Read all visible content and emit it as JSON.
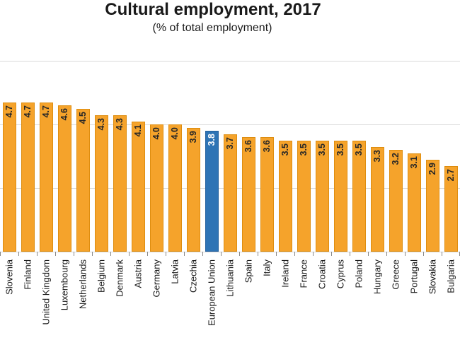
{
  "title": "Cultural employment, 2017",
  "subtitle": "(% of total employment)",
  "chart_data": {
    "type": "bar",
    "title": "Cultural employment, 2017",
    "subtitle": "(% of total employment)",
    "categories": [
      "Slovenia",
      "Finland",
      "United Kingdom",
      "Luxembourg",
      "Netherlands",
      "Belgium",
      "Denmark",
      "Austria",
      "Germany",
      "Latvia",
      "Czechia",
      "European Union",
      "Lithuania",
      "Spain",
      "Italy",
      "Ireland",
      "France",
      "Croatia",
      "Cyprus",
      "Poland",
      "Hungary",
      "Greece",
      "Portugal",
      "Slovakia",
      "Bulgaria"
    ],
    "values": [
      4.7,
      4.7,
      4.7,
      4.6,
      4.5,
      4.3,
      4.3,
      4.1,
      4.0,
      4.0,
      3.9,
      3.8,
      3.7,
      3.6,
      3.6,
      3.5,
      3.5,
      3.5,
      3.5,
      3.5,
      3.3,
      3.2,
      3.1,
      2.9,
      2.7
    ],
    "data_labels": [
      "4.7",
      "4.7",
      "4.7",
      "4.6",
      "4.5",
      "4.3",
      "4.3",
      "4.1",
      "4.0",
      "4.0",
      "3.9",
      "3.8",
      "3.7",
      "3.6",
      "3.6",
      "3.5",
      "3.5",
      "3.5",
      "3.5",
      "3.5",
      "3.3",
      "3.2",
      "3.1",
      "2.9",
      "2.7"
    ],
    "highlight_category": "European Union",
    "xlabel": "",
    "ylabel": "",
    "ylim": [
      0,
      6
    ],
    "gridline_values": [
      2,
      4,
      6
    ],
    "grid": "horizontal-only",
    "legend": "none",
    "bar_color": "#f5a32b",
    "bar_border_color": "#de8d0f",
    "highlight_color": "#2e74b5",
    "highlight_border_color": "#24619e",
    "value_label_color": "#262626",
    "highlight_value_label_color": "#ffffff",
    "gridline_color": "#d9d9d9",
    "tick_color": "#898989"
  }
}
